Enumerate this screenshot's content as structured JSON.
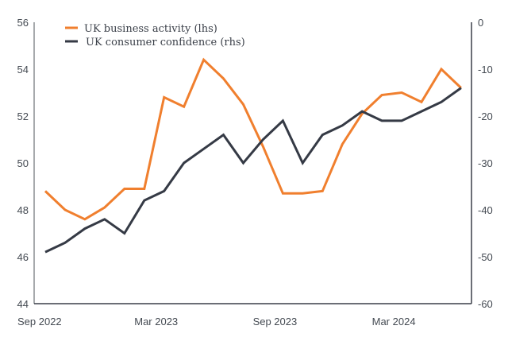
{
  "chart_data": {
    "type": "line",
    "title": "",
    "x": [
      "Sep 2022",
      "Oct 2022",
      "Nov 2022",
      "Dec 2022",
      "Jan 2023",
      "Feb 2023",
      "Mar 2023",
      "Apr 2023",
      "May 2023",
      "Jun 2023",
      "Jul 2023",
      "Aug 2023",
      "Sep 2023",
      "Oct 2023",
      "Nov 2023",
      "Dec 2023",
      "Jan 2024",
      "Feb 2024",
      "Mar 2024",
      "Apr 2024",
      "May 2024",
      "Jun 2024"
    ],
    "x_tick_labels": [
      "Sep 2022",
      "Mar 2023",
      "Sep 2023",
      "Mar 2024"
    ],
    "x_tick_indices": [
      0,
      6,
      12,
      18
    ],
    "left_axis": {
      "label": "lhs",
      "ylim": [
        44,
        56
      ],
      "ticks": [
        56,
        54,
        52,
        50,
        48,
        46,
        44
      ]
    },
    "right_axis": {
      "label": "rhs",
      "ylim": [
        -60,
        0
      ],
      "ticks": [
        0,
        -10,
        -20,
        -30,
        -40,
        -50,
        -60
      ]
    },
    "series": [
      {
        "name": "UK business activity (lhs)",
        "axis": "left",
        "color": "#F07F2E",
        "values": [
          48.8,
          48.0,
          47.6,
          48.1,
          48.9,
          48.9,
          52.8,
          52.4,
          54.4,
          53.6,
          52.5,
          50.7,
          48.7,
          48.7,
          48.8,
          50.8,
          52.1,
          52.9,
          53.0,
          52.6,
          54.0,
          53.2
        ]
      },
      {
        "name": "UK consumer confidence (rhs)",
        "axis": "right",
        "color": "#353A45",
        "values": [
          -49,
          -47,
          -44,
          -42,
          -45,
          -38,
          -36,
          -30,
          -27,
          -24,
          -30,
          -25,
          -21,
          -30,
          -24,
          -22,
          -19,
          -21,
          -21,
          -19,
          -17,
          -14
        ]
      }
    ],
    "legend_position": "top-left",
    "grid": false
  }
}
